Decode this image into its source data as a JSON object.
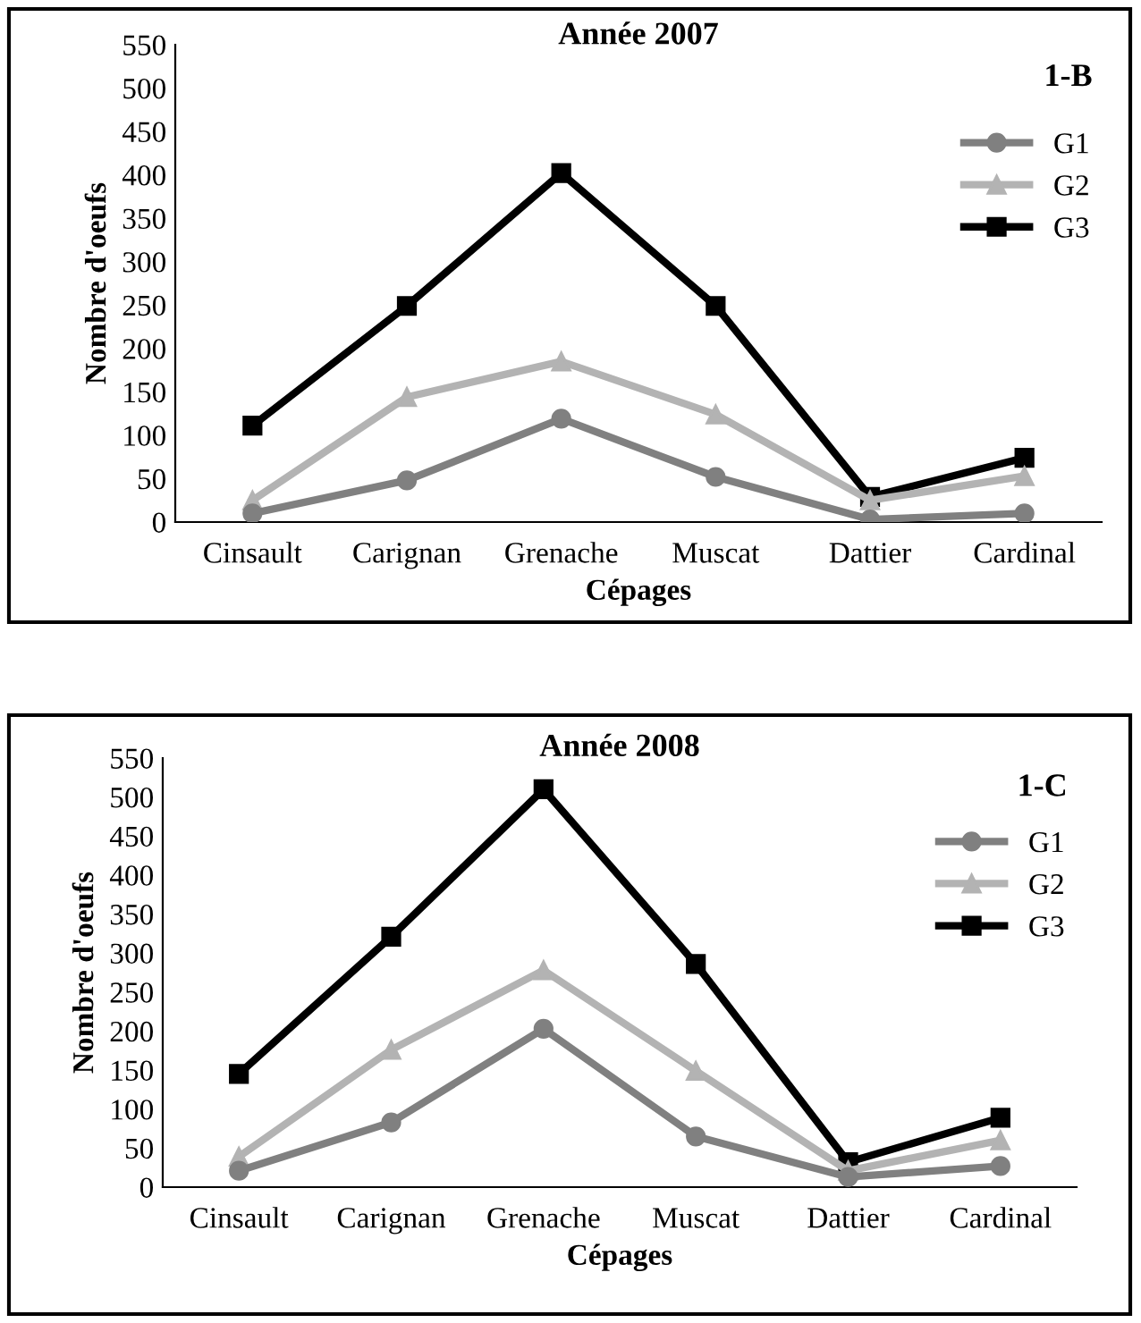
{
  "chart_data": [
    {
      "type": "line",
      "title": "Année 2007",
      "xlabel": "Cépages",
      "ylabel": "Nombre d'oeufs",
      "annotations": [
        "1-B"
      ],
      "categories": [
        "Cinsault",
        "Carignan",
        "Grenache",
        "Muscat",
        "Dattier",
        "Cardinal"
      ],
      "series": [
        {
          "name": "G1",
          "color": "#808080",
          "marker": "circle",
          "values": [
            10,
            48,
            119,
            52,
            3,
            10
          ]
        },
        {
          "name": "G2",
          "color": "#b3b3b3",
          "marker": "triangle",
          "values": [
            25,
            144,
            185,
            124,
            25,
            53
          ]
        },
        {
          "name": "G3",
          "color": "#000000",
          "marker": "square",
          "values": [
            111,
            249,
            402,
            249,
            29,
            74
          ]
        }
      ],
      "ylim": [
        0,
        550
      ],
      "yticks": [
        0,
        50,
        100,
        150,
        200,
        250,
        300,
        350,
        400,
        450,
        500,
        550
      ],
      "legend": "right",
      "grid": false,
      "line_style": "solid"
    },
    {
      "type": "line",
      "title": "Année 2008",
      "xlabel": "Cépages",
      "ylabel": "Nombre d'oeufs",
      "annotations": [
        "1-C"
      ],
      "categories": [
        "Cinsault",
        "Carignan",
        "Grenache",
        "Muscat",
        "Dattier",
        "Cardinal"
      ],
      "series": [
        {
          "name": "G1",
          "color": "#808080",
          "marker": "circle",
          "values": [
            21,
            83,
            203,
            65,
            13,
            27
          ]
        },
        {
          "name": "G2",
          "color": "#b3b3b3",
          "marker": "triangle",
          "values": [
            39,
            176,
            278,
            149,
            21,
            60
          ]
        },
        {
          "name": "G3",
          "color": "#000000",
          "marker": "square",
          "values": [
            145,
            321,
            510,
            286,
            32,
            89
          ]
        }
      ],
      "ylim": [
        0,
        550
      ],
      "yticks": [
        0,
        50,
        100,
        150,
        200,
        250,
        300,
        350,
        400,
        450,
        500,
        550
      ],
      "legend": "right",
      "grid": false,
      "line_style": "solid"
    }
  ]
}
